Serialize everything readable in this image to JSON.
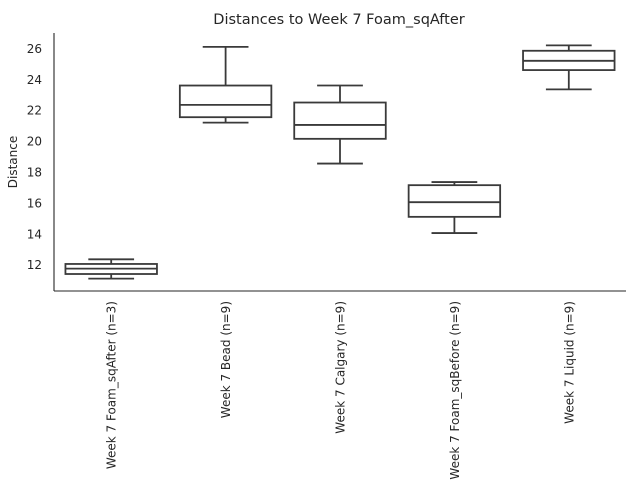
{
  "chart_data": {
    "type": "box",
    "title": "Distances to Week 7 Foam_sqAfter",
    "xlabel": "",
    "ylabel": "Distance",
    "ylim": [
      10.3,
      27.0
    ],
    "yticks": [
      12,
      14,
      16,
      18,
      20,
      22,
      24,
      26
    ],
    "grid": false,
    "categories": [
      "Week 7 Foam_sqAfter (n=3)",
      "Week 7 Bead (n=9)",
      "Week 7 Calgary (n=9)",
      "Week 7 Foam_sqBefore (n=9)",
      "Week 7 Liquid (n=9)"
    ],
    "boxes": [
      {
        "whisker_low": 11.1,
        "q1": 11.4,
        "median": 11.75,
        "q3": 12.05,
        "whisker_high": 12.35
      },
      {
        "whisker_low": 21.2,
        "q1": 21.55,
        "median": 22.35,
        "q3": 23.6,
        "whisker_high": 26.1
      },
      {
        "whisker_low": 18.55,
        "q1": 20.15,
        "median": 21.05,
        "q3": 22.5,
        "whisker_high": 23.6
      },
      {
        "whisker_low": 14.05,
        "q1": 15.1,
        "median": 16.05,
        "q3": 17.15,
        "whisker_high": 17.35
      },
      {
        "whisker_low": 23.35,
        "q1": 24.6,
        "median": 25.2,
        "q3": 25.85,
        "whisker_high": 26.2
      }
    ],
    "box_color": "#ffffff",
    "line_color": "#3a3a3a"
  }
}
